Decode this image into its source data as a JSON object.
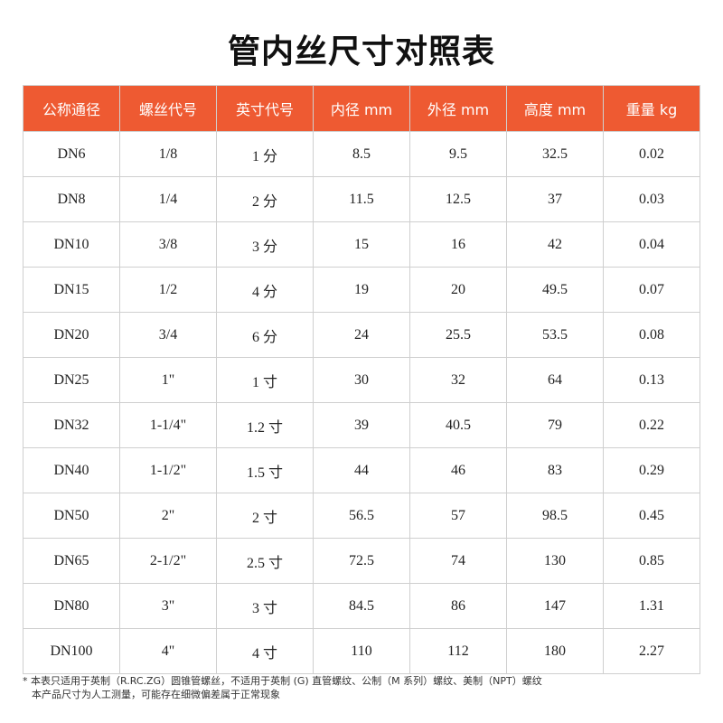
{
  "title": "管内丝尺寸对照表",
  "headers": [
    "公称通径",
    "螺丝代号",
    "英寸代号",
    "内径 mm",
    "外径 mm",
    "高度 mm",
    "重量 kg"
  ],
  "rows": [
    [
      "DN6",
      "1/8",
      "1 分",
      "8.5",
      "9.5",
      "32.5",
      "0.02"
    ],
    [
      "DN8",
      "1/4",
      "2 分",
      "11.5",
      "12.5",
      "37",
      "0.03"
    ],
    [
      "DN10",
      "3/8",
      "3 分",
      "15",
      "16",
      "42",
      "0.04"
    ],
    [
      "DN15",
      "1/2",
      "4 分",
      "19",
      "20",
      "49.5",
      "0.07"
    ],
    [
      "DN20",
      "3/4",
      "6 分",
      "24",
      "25.5",
      "53.5",
      "0.08"
    ],
    [
      "DN25",
      "1\"",
      "1 寸",
      "30",
      "32",
      "64",
      "0.13"
    ],
    [
      "DN32",
      "1-1/4\"",
      "1.2 寸",
      "39",
      "40.5",
      "79",
      "0.22"
    ],
    [
      "DN40",
      "1-1/2\"",
      "1.5 寸",
      "44",
      "46",
      "83",
      "0.29"
    ],
    [
      "DN50",
      "2\"",
      "2 寸",
      "56.5",
      "57",
      "98.5",
      "0.45"
    ],
    [
      "DN65",
      "2-1/2\"",
      "2.5 寸",
      "72.5",
      "74",
      "130",
      "0.85"
    ],
    [
      "DN80",
      "3\"",
      "3 寸",
      "84.5",
      "86",
      "147",
      "1.31"
    ],
    [
      "DN100",
      "4\"",
      "4 寸",
      "110",
      "112",
      "180",
      "2.27"
    ]
  ],
  "notes": [
    "* 本表只适用于英制（R.RC.ZG）圆锥管螺丝，不适用于英制 (G) 直管螺纹、公制（M 系列）螺纹、美制（NPT）螺纹",
    "本产品尺寸为人工测量，可能存在细微偏差属于正常现象"
  ],
  "colors": {
    "header_bg": "#ee5a32",
    "header_text": "#ffffff",
    "border": "#cfcfcf"
  }
}
